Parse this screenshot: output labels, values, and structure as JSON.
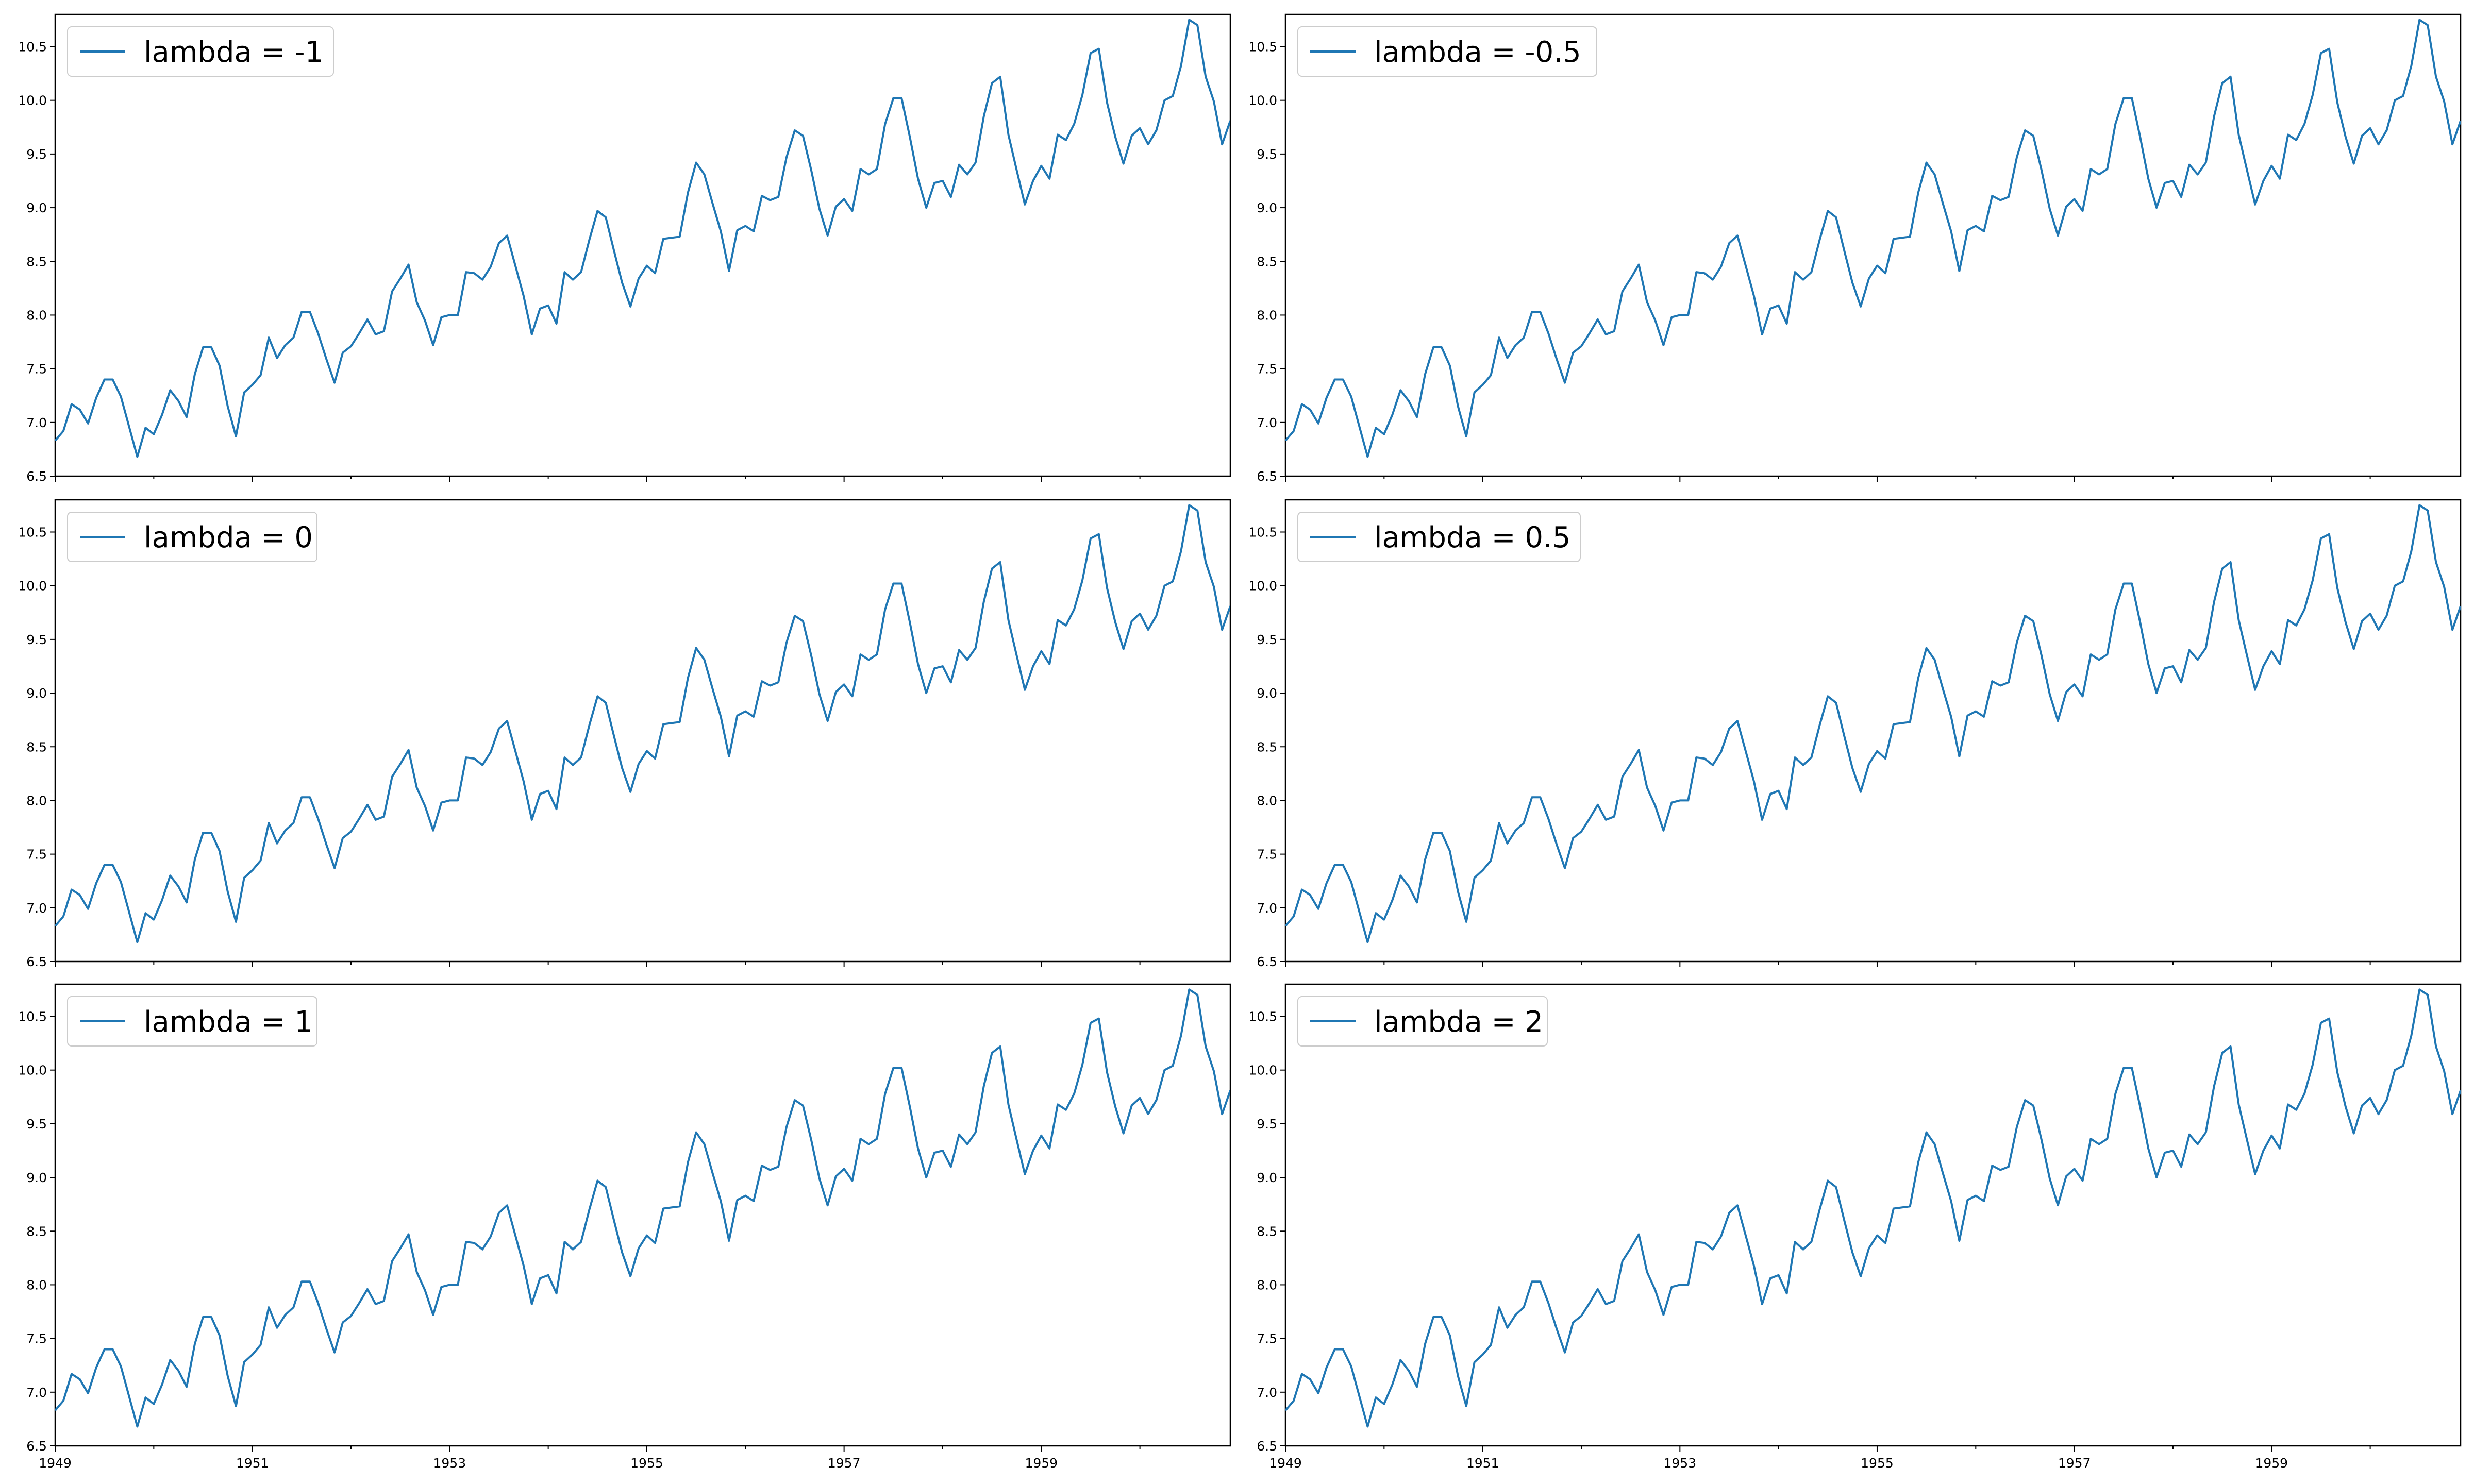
{
  "colors": {
    "series": "#1f77b4",
    "axes": "#000000",
    "legend_border": "#cccccc",
    "background": "#ffffff"
  },
  "chart_data": {
    "type": "line",
    "layout": "3x2 grid of subplots, shared x axis, x tick labels on bottom row only",
    "legend_placement": "upper left",
    "grid": false,
    "x_start": "1949-01",
    "x_frequency": "monthly",
    "xlim": [
      "1949-01",
      "1960-12"
    ],
    "ylim": [
      6.5,
      10.8
    ],
    "xticks": [
      "1949",
      "1951",
      "1953",
      "1955",
      "1957",
      "1959"
    ],
    "yticks": [
      "6.5",
      "7.0",
      "7.5",
      "8.0",
      "8.5",
      "9.0",
      "9.5",
      "10.0",
      "10.5"
    ],
    "panels": [
      {
        "legend": "lambda = -1"
      },
      {
        "legend": "lambda = -0.5"
      },
      {
        "legend": "lambda = 0"
      },
      {
        "legend": "lambda = 0.5"
      },
      {
        "legend": "lambda = 1"
      },
      {
        "legend": "lambda = 2"
      }
    ],
    "values": [
      6.83,
      6.92,
      7.17,
      7.12,
      6.99,
      7.23,
      7.4,
      7.4,
      7.24,
      6.96,
      6.68,
      6.95,
      6.89,
      7.07,
      7.3,
      7.2,
      7.05,
      7.45,
      7.7,
      7.7,
      7.53,
      7.15,
      6.87,
      7.28,
      7.35,
      7.44,
      7.79,
      7.6,
      7.72,
      7.79,
      8.03,
      8.03,
      7.83,
      7.59,
      7.37,
      7.65,
      7.71,
      7.83,
      7.96,
      7.82,
      7.85,
      8.22,
      8.34,
      8.47,
      8.12,
      7.95,
      7.72,
      7.98,
      8.0,
      8.0,
      8.4,
      8.39,
      8.33,
      8.45,
      8.67,
      8.74,
      8.46,
      8.18,
      7.82,
      8.06,
      8.09,
      7.92,
      8.4,
      8.33,
      8.4,
      8.7,
      8.97,
      8.91,
      8.6,
      8.3,
      8.08,
      8.34,
      8.46,
      8.39,
      8.71,
      8.72,
      8.73,
      9.14,
      9.42,
      9.31,
      9.04,
      8.78,
      8.41,
      8.79,
      8.83,
      8.78,
      9.11,
      9.07,
      9.1,
      9.47,
      9.72,
      9.67,
      9.35,
      8.99,
      8.74,
      9.01,
      9.08,
      8.97,
      9.36,
      9.31,
      9.36,
      9.78,
      10.02,
      10.02,
      9.66,
      9.27,
      9.0,
      9.23,
      9.25,
      9.1,
      9.4,
      9.31,
      9.42,
      9.85,
      10.16,
      10.22,
      9.68,
      9.35,
      9.03,
      9.25,
      9.39,
      9.27,
      9.68,
      9.63,
      9.78,
      10.05,
      10.44,
      10.48,
      9.98,
      9.66,
      9.41,
      9.67,
      9.74,
      9.59,
      9.72,
      10.0,
      10.04,
      10.32,
      10.75,
      10.7,
      10.22,
      9.99,
      9.59,
      9.81
    ]
  }
}
